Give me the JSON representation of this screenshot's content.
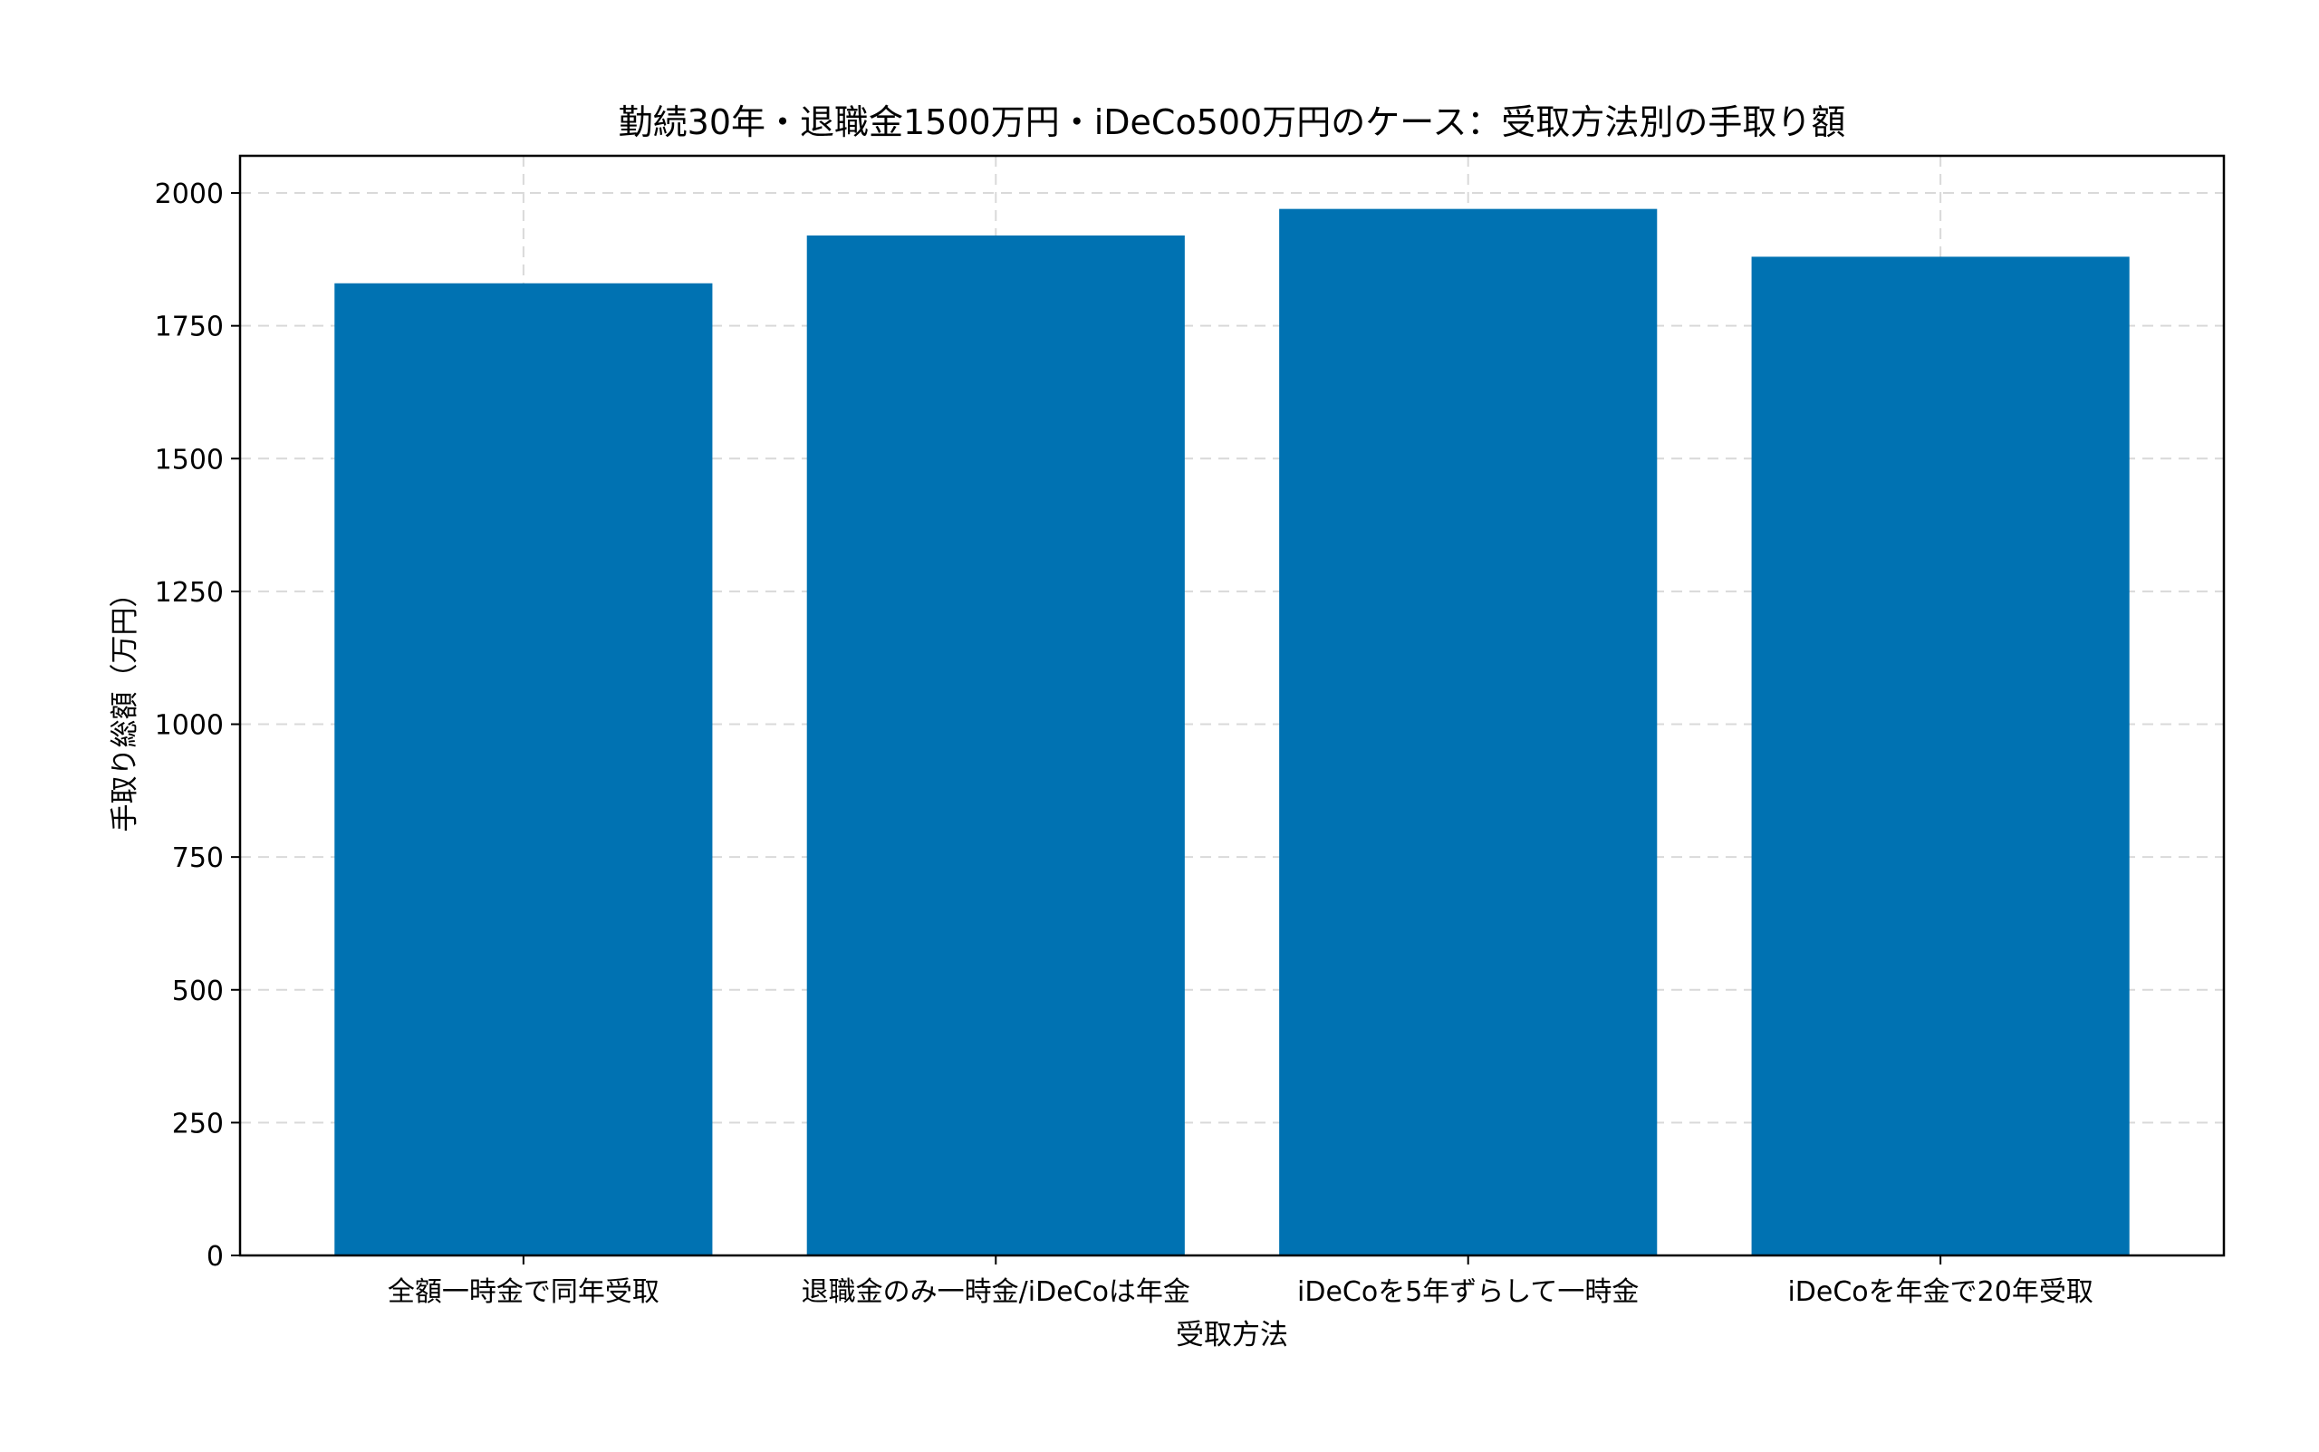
{
  "chart_data": {
    "type": "bar",
    "title": "勤続30年・退職金1500万円・iDeCo500万円のケース：受取方法別の手取り額",
    "xlabel": "受取方法",
    "ylabel": "手取り総額（万円）",
    "categories": [
      "全額一時金で同年受取",
      "退職金のみ一時金/iDeCoは年金",
      "iDeCoを5年ずらして一時金",
      "iDeCoを年金で20年受取"
    ],
    "values": [
      1830,
      1920,
      1970,
      1880
    ],
    "ylim": [
      0,
      2070
    ],
    "yticks": [
      0,
      250,
      500,
      750,
      1000,
      1250,
      1500,
      1750,
      2000
    ],
    "grid": true,
    "bar_color": "#0072B2"
  }
}
